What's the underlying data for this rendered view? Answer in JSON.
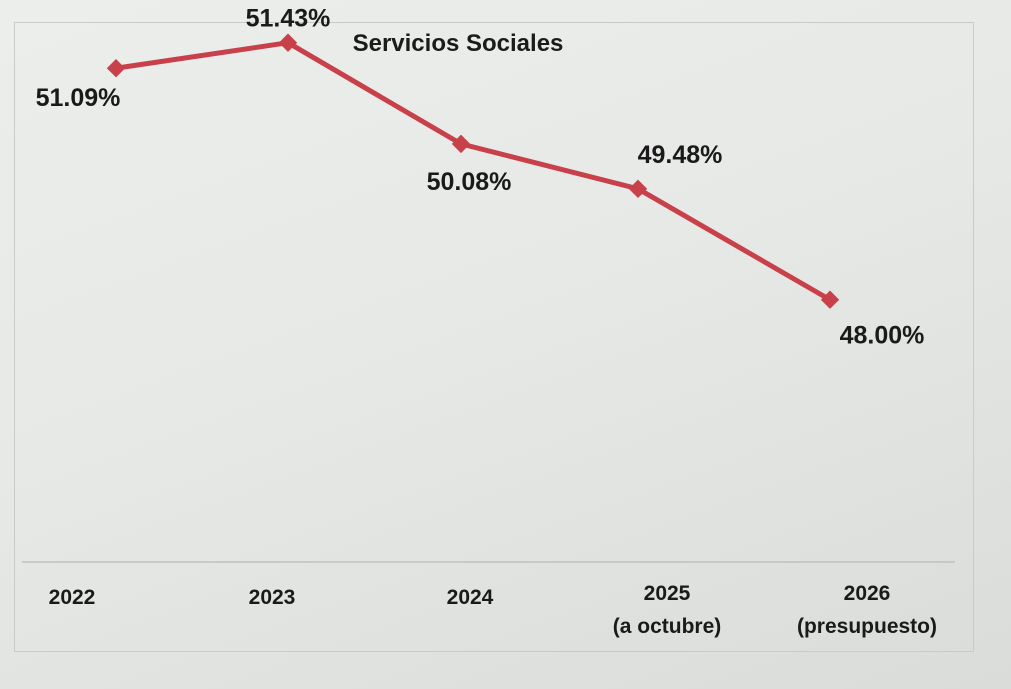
{
  "chart_data": {
    "type": "line",
    "title": "Servicios Sociales",
    "categories": [
      [
        "2022"
      ],
      [
        "2023"
      ],
      [
        "2024"
      ],
      [
        "2025",
        "(a octubre)"
      ],
      [
        "2026",
        "(presupuesto)"
      ]
    ],
    "series": [
      {
        "name": "Servicios Sociales",
        "values": [
          51.09,
          51.43,
          50.08,
          49.48,
          48.0
        ],
        "labels": [
          "51.09%",
          "51.43%",
          "50.08%",
          "49.48%",
          "48.00%"
        ],
        "color": "#c8404a"
      }
    ],
    "ylim": [
      44.5,
      52.0
    ],
    "xlabel": "",
    "ylabel": "",
    "grid": false,
    "legend": "none"
  }
}
